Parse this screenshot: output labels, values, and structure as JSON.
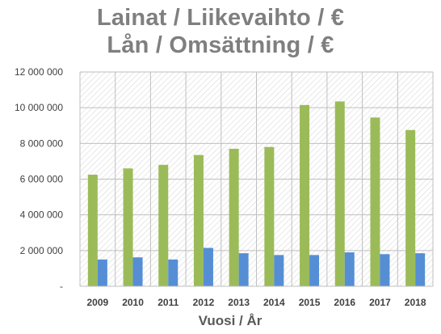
{
  "chart_data": {
    "type": "bar",
    "title_lines": [
      "Lainat / Liikevaihto / €",
      "Lån / Omsättning / €"
    ],
    "xlabel": "Vuosi / År",
    "ylabel": "",
    "categories": [
      "2009",
      "2010",
      "2011",
      "2012",
      "2013",
      "2014",
      "2015",
      "2016",
      "2017",
      "2018"
    ],
    "series": [
      {
        "color": "#9bbb59",
        "values": [
          6250000,
          6600000,
          6800000,
          7350000,
          7700000,
          7800000,
          10150000,
          10350000,
          9450000,
          8750000
        ]
      },
      {
        "color": "#558ed5",
        "values": [
          1500000,
          1620000,
          1500000,
          2150000,
          1850000,
          1750000,
          1750000,
          1900000,
          1800000,
          1850000
        ]
      }
    ],
    "ylim": [
      0,
      12000000
    ],
    "yticks": [
      0,
      2000000,
      4000000,
      6000000,
      8000000,
      10000000,
      12000000
    ],
    "ytick_labels": [
      "-",
      "2 000 000",
      "4 000 000",
      "6 000 000",
      "8 000 000",
      "10 000 000",
      "12 000 000"
    ],
    "grid": true,
    "legend": "none",
    "colors": {
      "plot_hatch": "#d9d9d9",
      "grid": "#bfbfbf",
      "title": "#7f7f7f"
    }
  }
}
